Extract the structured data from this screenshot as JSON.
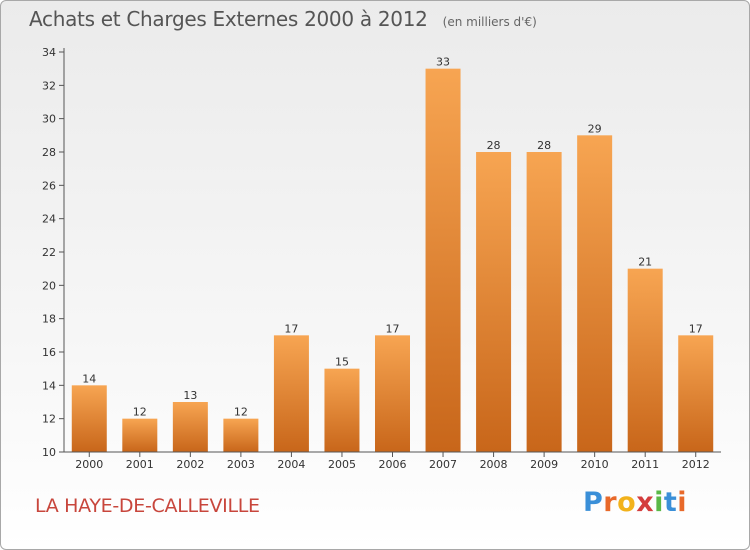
{
  "header": {
    "title": "Achats et Charges Externes 2000 à 2012",
    "subtitle": "(en milliers d'€)"
  },
  "footer": {
    "commune": "LA HAYE-DE-CALLEVILLE",
    "brand_letters": [
      "P",
      "r",
      "o",
      "x",
      "i",
      "t",
      "i"
    ],
    "brand_colors": [
      "#3a8fd8",
      "#e8692a",
      "#f2b21b",
      "#d43d3d",
      "#5ab847",
      "#3a8fd8",
      "#e8692a"
    ]
  },
  "colors": {
    "bar_light": "#f7a552",
    "bar_dark": "#c8661a",
    "axis": "#555555",
    "grid": "#d0d0d0"
  },
  "chart_data": {
    "type": "bar",
    "title": "Achats et Charges Externes 2000 à 2012",
    "subtitle": "(en milliers d'€)",
    "categories": [
      "2000",
      "2001",
      "2002",
      "2003",
      "2004",
      "2005",
      "2006",
      "2007",
      "2008",
      "2009",
      "2010",
      "2011",
      "2012"
    ],
    "values": [
      14,
      12,
      13,
      12,
      17,
      15,
      17,
      33,
      28,
      28,
      29,
      21,
      17
    ],
    "ylim": [
      10,
      34
    ],
    "yticks": [
      10,
      12,
      14,
      16,
      18,
      20,
      22,
      24,
      26,
      28,
      30,
      32,
      34
    ],
    "xlabel": "",
    "ylabel": "",
    "grid": false,
    "legend": "none"
  }
}
